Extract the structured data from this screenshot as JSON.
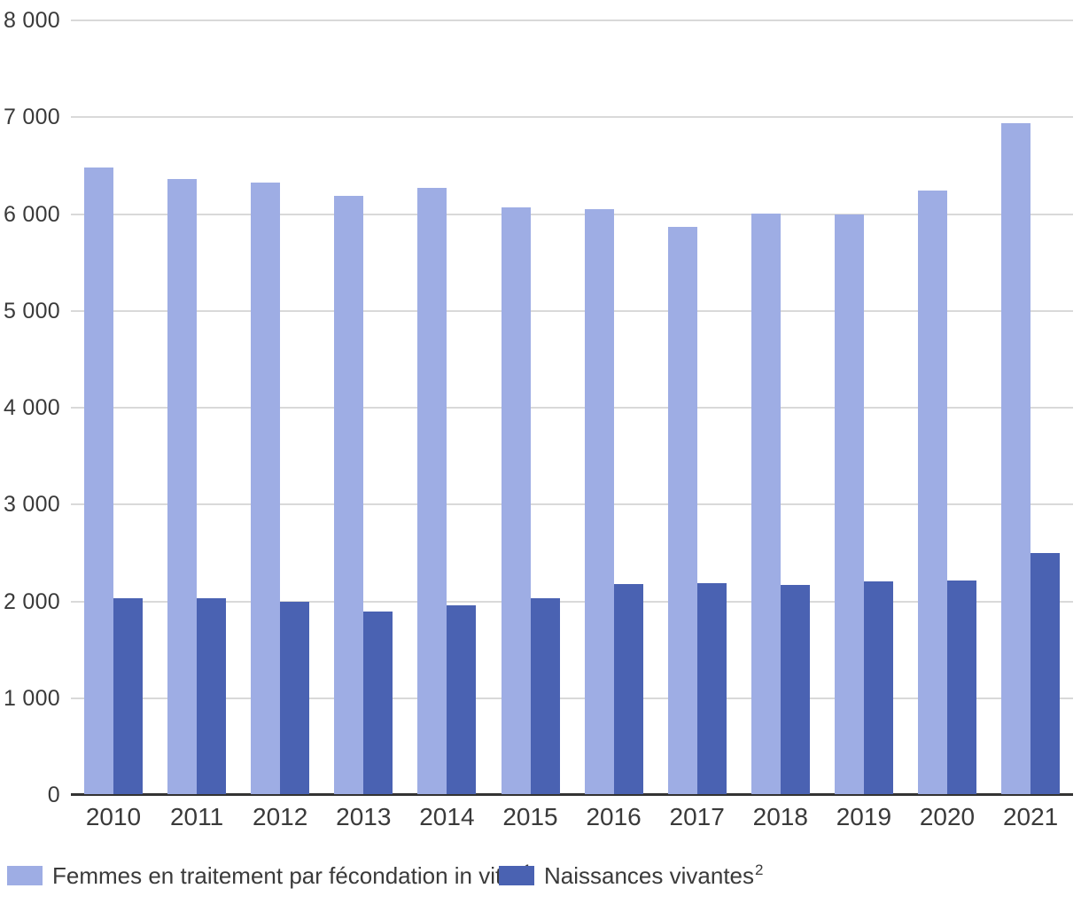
{
  "chart_data": {
    "type": "bar",
    "title": "",
    "categories": [
      "2010",
      "2011",
      "2012",
      "2013",
      "2014",
      "2015",
      "2016",
      "2017",
      "2018",
      "2019",
      "2020",
      "2021"
    ],
    "series": [
      {
        "id": "femmes-fiv",
        "name": "Femmes en traitement par fécondation in vitro",
        "footnote_mark": "1",
        "color": "#9eade4",
        "values": [
          6470,
          6350,
          6320,
          6180,
          6260,
          6060,
          6040,
          5860,
          6000,
          5990,
          6230,
          6930
        ]
      },
      {
        "id": "naissances-vivantes",
        "name": "Naissances vivantes",
        "footnote_mark": "2",
        "color": "#4a62b2",
        "values": [
          2020,
          2020,
          1990,
          1890,
          1950,
          2020,
          2170,
          2180,
          2160,
          2200,
          2210,
          2490
        ]
      }
    ],
    "xlabel": "",
    "ylabel": "",
    "ylim": [
      0,
      8000
    ],
    "ytick_step": 1000,
    "yticks": [
      {
        "value": 0,
        "label": "0"
      },
      {
        "value": 1000,
        "label": "1 000"
      },
      {
        "value": 2000,
        "label": "2 000"
      },
      {
        "value": 3000,
        "label": "3 000"
      },
      {
        "value": 4000,
        "label": "4 000"
      },
      {
        "value": 5000,
        "label": "5 000"
      },
      {
        "value": 6000,
        "label": "6 000"
      },
      {
        "value": 7000,
        "label": "7 000"
      },
      {
        "value": 8000,
        "label": "8 000"
      }
    ],
    "grid": true,
    "legend_position": "bottom",
    "colors": {
      "grid": "#d9d9d9",
      "axis": "#333333",
      "text": "#3a3a3a",
      "background": "#ffffff"
    }
  }
}
